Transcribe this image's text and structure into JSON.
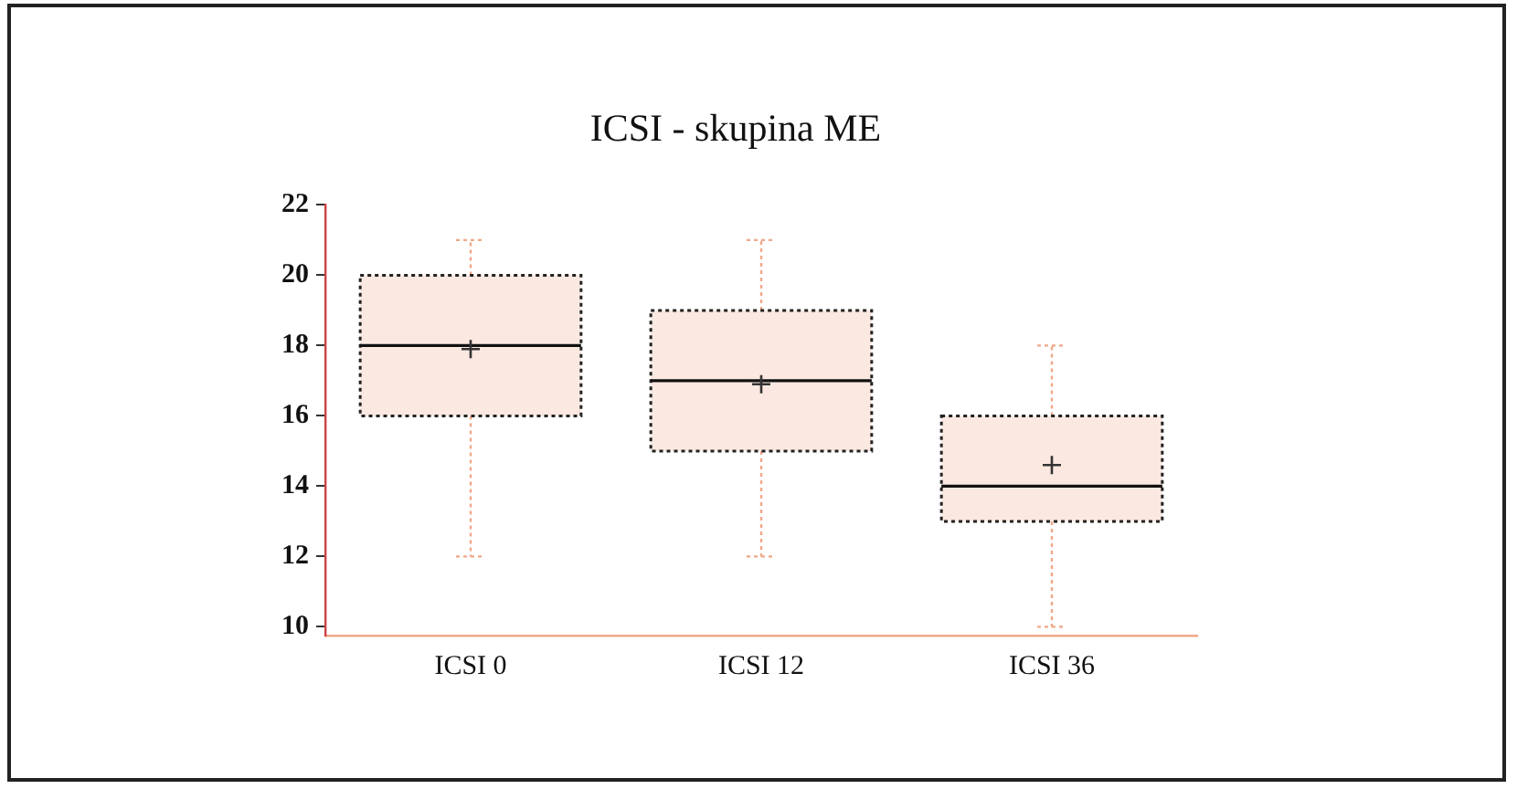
{
  "chart_data": {
    "type": "box",
    "title": "ICSI - skupina ME",
    "categories": [
      "ICSI 0",
      "ICSI 12",
      "ICSI 36"
    ],
    "boxes": [
      {
        "low": 12,
        "q1": 16,
        "median": 18,
        "q3": 20,
        "high": 21,
        "mean": 17.9
      },
      {
        "low": 12,
        "q1": 15,
        "median": 17,
        "q3": 19,
        "high": 21,
        "mean": 16.9
      },
      {
        "low": 10,
        "q1": 13,
        "median": 14,
        "q3": 16,
        "high": 18,
        "mean": 14.6
      }
    ],
    "color": "#f0a888",
    "marker": "cross",
    "ylim": [
      9.75,
      22
    ],
    "yticks": [
      10,
      12,
      14,
      16,
      18,
      20,
      22
    ]
  }
}
